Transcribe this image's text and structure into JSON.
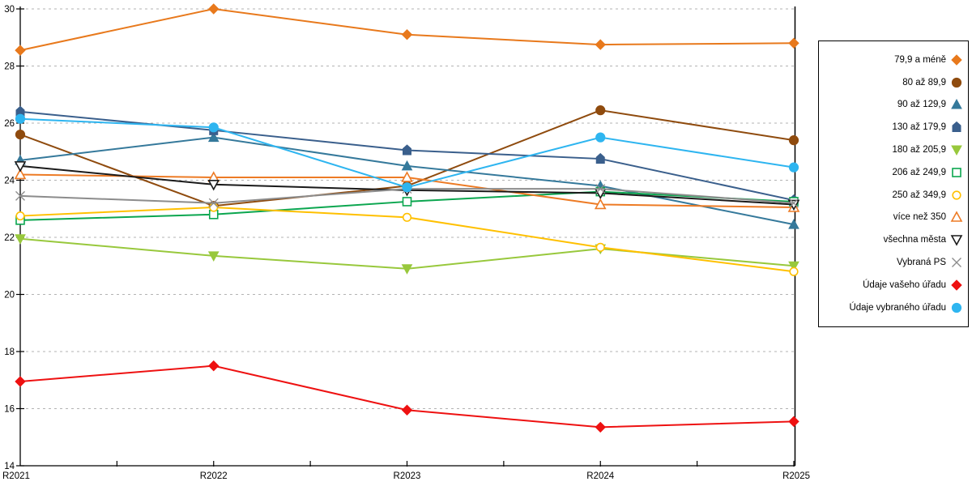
{
  "chart_data": {
    "type": "line",
    "title": "",
    "xlabel": "",
    "ylabel": "",
    "categories": [
      "R2021",
      "R2022",
      "R2023",
      "R2024",
      "R2025"
    ],
    "ylim": [
      14,
      30
    ],
    "ytick_step": 2,
    "ytick_labels": [
      "14",
      "16",
      "18",
      "20",
      "22",
      "24",
      "26",
      "28",
      "30"
    ],
    "grid": "horizontal-dashed",
    "legend_position": "right",
    "series": [
      {
        "name": "79,9 a méně",
        "marker": "diamond",
        "style": "filled",
        "color": "#E8791C",
        "values": [
          28.55,
          30.0,
          29.1,
          28.75,
          28.8
        ]
      },
      {
        "name": "80 až 89,9",
        "marker": "circle",
        "style": "filled",
        "color": "#8F4B0E",
        "values": [
          25.6,
          23.1,
          23.8,
          26.45,
          25.4
        ]
      },
      {
        "name": "90 až 129,9",
        "marker": "triangle-up",
        "style": "filled",
        "color": "#35799B",
        "values": [
          24.7,
          25.5,
          24.5,
          23.8,
          22.45
        ]
      },
      {
        "name": "130 až 179,9",
        "marker": "pentagon",
        "style": "filled",
        "color": "#3A5F8C",
        "values": [
          26.4,
          25.75,
          25.05,
          24.75,
          23.3
        ]
      },
      {
        "name": "180 až 205,9",
        "marker": "triangle-down",
        "style": "filled",
        "color": "#98C83C",
        "values": [
          21.95,
          21.35,
          20.9,
          21.6,
          21.0
        ]
      },
      {
        "name": "206 až 249,9",
        "marker": "square",
        "style": "open",
        "color": "#0BA64F",
        "values": [
          22.6,
          22.8,
          23.25,
          23.6,
          23.25
        ]
      },
      {
        "name": "250 až 349,9",
        "marker": "circle",
        "style": "open",
        "color": "#FFC000",
        "values": [
          22.75,
          23.05,
          22.7,
          21.65,
          20.8
        ]
      },
      {
        "name": "více než 350",
        "marker": "triangle-up",
        "style": "open",
        "color": "#ED7B25",
        "values": [
          24.2,
          24.1,
          24.1,
          23.15,
          23.05
        ]
      },
      {
        "name": "všechna města",
        "marker": "triangle-down",
        "style": "open",
        "color": "#1A1A1A",
        "values": [
          24.5,
          23.85,
          23.65,
          23.55,
          23.15
        ]
      },
      {
        "name": "Vybraná PS",
        "marker": "x",
        "style": "open",
        "color": "#8C8C8C",
        "values": [
          23.45,
          23.2,
          23.7,
          23.7,
          23.2
        ]
      },
      {
        "name": "Údaje vašeho úřadu",
        "marker": "diamond",
        "style": "filled",
        "color": "#EE1111",
        "values": [
          16.95,
          17.5,
          15.95,
          15.35,
          15.55
        ]
      },
      {
        "name": "Údaje vybraného úřadu",
        "marker": "circle",
        "style": "filled",
        "color": "#2EB5F0",
        "values": [
          26.15,
          25.85,
          23.75,
          25.5,
          24.45
        ]
      }
    ],
    "colors": {
      "grid": "#B3B3B3",
      "axis": "#000000",
      "background": "#FFFFFF"
    }
  }
}
